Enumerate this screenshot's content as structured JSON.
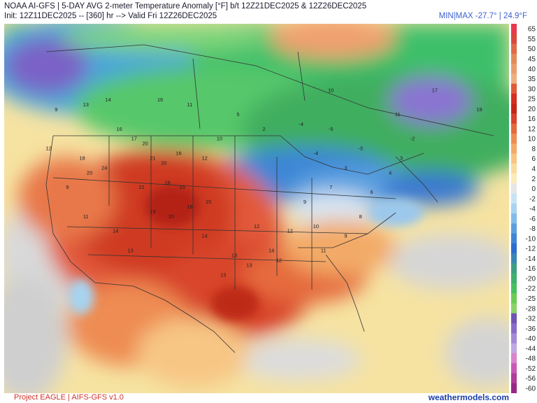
{
  "header": {
    "line1": "NOAA AI-GFS | 5-DAY AVG 2-meter Temperature Anomaly [°F] b/t 12Z21DEC2025 & 12Z26DEC2025",
    "line2": "Init: 12Z11DEC2025 -- [360] hr --> Valid Fri 12Z26DEC2025",
    "minmax": "MIN|MAX -27.7° | 24.9°F"
  },
  "colorbar": {
    "labels": [
      "65",
      "55",
      "50",
      "45",
      "40",
      "35",
      "30",
      "25",
      "20",
      "16",
      "12",
      "10",
      "8",
      "6",
      "4",
      "2",
      "0",
      "-2",
      "-4",
      "-6",
      "-8",
      "-10",
      "-12",
      "-14",
      "-16",
      "-20",
      "-22",
      "-25",
      "-28",
      "-32",
      "-36",
      "-40",
      "-44",
      "-48",
      "-52",
      "-56",
      "-60"
    ],
    "colors": [
      "#e83a4e",
      "#d84a3a",
      "#e06a4a",
      "#e58a5a",
      "#ea9e6a",
      "#eeb07e",
      "#e05a38",
      "#d43020",
      "#c62818",
      "#d8442c",
      "#e56a3e",
      "#ee8c52",
      "#f3aa68",
      "#f7c684",
      "#f9dc9e",
      "#fbecba",
      "#e6e6e6",
      "#c8e4f4",
      "#a8d4f0",
      "#84bce8",
      "#5ea0de",
      "#3f86d4",
      "#2b6ed0",
      "#3a86b4",
      "#3e9e84",
      "#3fb06e",
      "#48c060",
      "#6ccc52",
      "#8ad26a",
      "#6e54b4",
      "#8a6cc8",
      "#a58ad6",
      "#c2a8e2",
      "#d884cc",
      "#c85ab4",
      "#b03c9c",
      "#982888"
    ]
  },
  "map": {
    "anomaly_labels": [
      {
        "v": "16",
        "lon": -112.5,
        "lat": 44.0
      },
      {
        "v": "17",
        "lon": -110.5,
        "lat": 43.0
      },
      {
        "v": "20",
        "lon": -109.0,
        "lat": 42.5
      },
      {
        "v": "21",
        "lon": -108.0,
        "lat": 41.0
      },
      {
        "v": "20",
        "lon": -106.5,
        "lat": 40.5
      },
      {
        "v": "16",
        "lon": -104.5,
        "lat": 41.5
      },
      {
        "v": "18",
        "lon": -117.5,
        "lat": 41.0
      },
      {
        "v": "20",
        "lon": -116.5,
        "lat": 39.5
      },
      {
        "v": "24",
        "lon": -114.5,
        "lat": 40.0
      },
      {
        "v": "22",
        "lon": -109.5,
        "lat": 38.0
      },
      {
        "v": "18",
        "lon": -106.0,
        "lat": 38.5
      },
      {
        "v": "15",
        "lon": -104.0,
        "lat": 38.0
      },
      {
        "v": "19",
        "lon": -108.0,
        "lat": 35.5
      },
      {
        "v": "20",
        "lon": -105.5,
        "lat": 35.0
      },
      {
        "v": "18",
        "lon": -103.0,
        "lat": 36.0
      },
      {
        "v": "15",
        "lon": -100.5,
        "lat": 36.5
      },
      {
        "v": "14",
        "lon": -101.0,
        "lat": 33.0
      },
      {
        "v": "13",
        "lon": -97.0,
        "lat": 31.0
      },
      {
        "v": "12",
        "lon": -94.0,
        "lat": 34.0
      },
      {
        "v": "14",
        "lon": -92.0,
        "lat": 31.5
      },
      {
        "v": "12",
        "lon": -89.5,
        "lat": 33.5
      },
      {
        "v": "10",
        "lon": -86.0,
        "lat": 34.0
      },
      {
        "v": "11",
        "lon": -85.0,
        "lat": 31.5
      },
      {
        "v": "9",
        "lon": -82.0,
        "lat": 33.0
      },
      {
        "v": "8",
        "lon": -80.0,
        "lat": 35.0
      },
      {
        "v": "6",
        "lon": -78.5,
        "lat": 37.5
      },
      {
        "v": "4",
        "lon": -76.0,
        "lat": 39.5
      },
      {
        "v": "3",
        "lon": -74.5,
        "lat": 41.0
      },
      {
        "v": "-2",
        "lon": -73.0,
        "lat": 43.0
      },
      {
        "v": "-5",
        "lon": -84.0,
        "lat": 44.0
      },
      {
        "v": "-4",
        "lon": -88.0,
        "lat": 44.5
      },
      {
        "v": "2",
        "lon": -93.0,
        "lat": 44.0
      },
      {
        "v": "5",
        "lon": -96.5,
        "lat": 45.5
      },
      {
        "v": "10",
        "lon": -99.0,
        "lat": 43.0
      },
      {
        "v": "12",
        "lon": -101.0,
        "lat": 41.0
      },
      {
        "v": "14",
        "lon": -113.0,
        "lat": 33.5
      },
      {
        "v": "13",
        "lon": -111.0,
        "lat": 31.5
      },
      {
        "v": "11",
        "lon": -117.0,
        "lat": 35.0
      },
      {
        "v": "9",
        "lon": -119.5,
        "lat": 38.0
      },
      {
        "v": "12",
        "lon": -122.0,
        "lat": 42.0
      },
      {
        "v": "9",
        "lon": -121.0,
        "lat": 46.0
      },
      {
        "v": "13",
        "lon": -117.0,
        "lat": 46.5
      },
      {
        "v": "14",
        "lon": -114.0,
        "lat": 47.0
      },
      {
        "v": "16",
        "lon": -107.0,
        "lat": 47.0
      },
      {
        "v": "11",
        "lon": -103.0,
        "lat": 46.5
      },
      {
        "v": "13",
        "lon": -98.5,
        "lat": 29.0
      },
      {
        "v": "13",
        "lon": -95.0,
        "lat": 30.0
      },
      {
        "v": "12",
        "lon": -91.0,
        "lat": 30.5
      },
      {
        "v": "9",
        "lon": -87.5,
        "lat": 36.5
      },
      {
        "v": "7",
        "lon": -84.0,
        "lat": 38.0
      },
      {
        "v": "3",
        "lon": -82.0,
        "lat": 40.0
      },
      {
        "v": "-4",
        "lon": -86.0,
        "lat": 41.5
      },
      {
        "v": "-3",
        "lon": -80.0,
        "lat": 42.0
      },
      {
        "v": "10",
        "lon": -84.0,
        "lat": 48.0
      },
      {
        "v": "17",
        "lon": -70.0,
        "lat": 48.0
      },
      {
        "v": "11",
        "lon": -75.0,
        "lat": 45.5
      },
      {
        "v": "19",
        "lon": -64.0,
        "lat": 46.0
      }
    ]
  },
  "footer": {
    "left": "Project EAGLE | AIFS-GFS v1.0",
    "right": "weathermodels.com"
  }
}
